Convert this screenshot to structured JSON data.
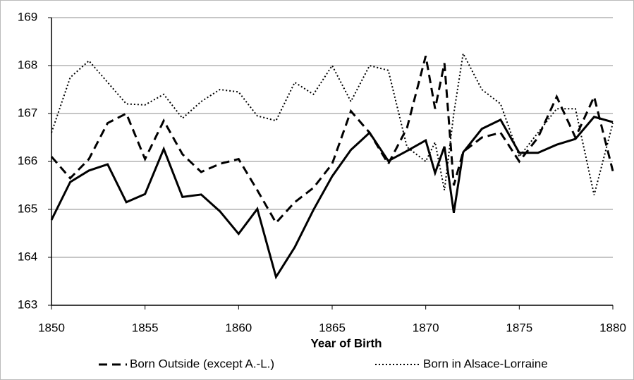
{
  "chart_data": {
    "type": "line",
    "x_label": "Year of Birth",
    "x": [
      1850,
      1851,
      1852,
      1853,
      1854,
      1855,
      1856,
      1857,
      1858,
      1859,
      1860,
      1861,
      1862,
      1863,
      1864,
      1865,
      1866,
      1867,
      1868,
      1869,
      1870,
      1870.5,
      1871,
      1871.5,
      1872,
      1873,
      1874,
      1875,
      1876,
      1877,
      1878,
      1879,
      1880
    ],
    "series": [
      {
        "color": "#000000",
        "dash": "solid",
        "values": [
          164.78,
          165.57,
          165.81,
          165.94,
          165.15,
          165.32,
          166.26,
          165.26,
          165.31,
          164.96,
          164.49,
          165.01,
          163.59,
          164.21,
          164.99,
          165.69,
          166.24,
          166.6,
          166.01,
          166.22,
          166.44,
          165.76,
          166.31,
          164.93,
          166.19,
          166.68,
          166.87,
          166.18,
          166.18,
          166.35,
          166.47,
          166.93,
          166.82
        ]
      },
      {
        "name": "Born Outside (except A.-L.)",
        "color": "#000000",
        "dash": "dashed",
        "values": [
          166.1,
          165.65,
          166.05,
          166.8,
          167.0,
          166.05,
          166.85,
          166.15,
          165.78,
          165.95,
          166.05,
          165.4,
          164.72,
          165.15,
          165.45,
          165.95,
          167.05,
          166.6,
          165.95,
          166.7,
          168.2,
          167.1,
          168.05,
          165.5,
          166.2,
          166.5,
          166.6,
          166.0,
          166.5,
          167.35,
          166.5,
          167.35,
          165.8
        ]
      },
      {
        "name": "Born in Alsace-Lorraine",
        "color": "#000000",
        "dash": "dotted",
        "values": [
          166.6,
          167.75,
          168.1,
          167.65,
          167.2,
          167.18,
          167.4,
          166.9,
          167.25,
          167.5,
          167.45,
          166.95,
          166.85,
          167.65,
          167.4,
          168.0,
          167.25,
          168.0,
          167.9,
          166.3,
          166.0,
          166.4,
          165.4,
          167.0,
          168.25,
          167.5,
          167.2,
          166.1,
          166.6,
          167.1,
          167.1,
          165.3,
          166.8
        ]
      }
    ],
    "xlim": [
      1850,
      1880
    ],
    "xticks": [
      1850,
      1855,
      1860,
      1865,
      1870,
      1875,
      1880
    ],
    "ylim": [
      163,
      169
    ],
    "yticks": [
      163,
      164,
      165,
      166,
      167,
      168,
      169
    ],
    "grid": true,
    "legend": "bottom"
  }
}
